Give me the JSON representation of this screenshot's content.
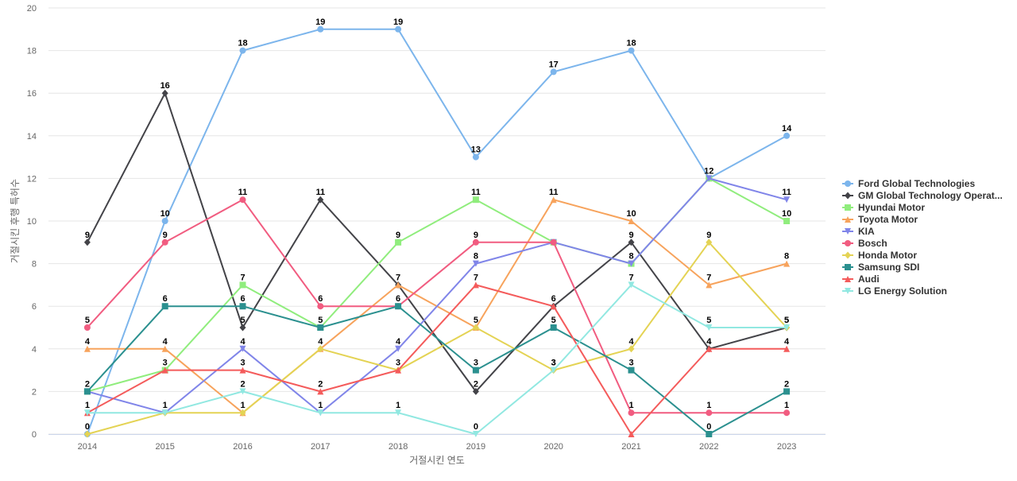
{
  "chart_data": {
    "type": "line",
    "title": "",
    "xlabel": "거절시킨 연도",
    "ylabel": "거절시킨 후행 특허수",
    "ylim": [
      0,
      20
    ],
    "yticks": [
      0,
      2,
      4,
      6,
      8,
      10,
      12,
      14,
      16,
      18,
      20
    ],
    "grid": true,
    "legend_position": "right",
    "categories": [
      "2014",
      "2015",
      "2016",
      "2017",
      "2018",
      "2019",
      "2020",
      "2021",
      "2022",
      "2023"
    ],
    "series": [
      {
        "name": "Ford Global Technologies",
        "color": "#7cb5ec",
        "marker": "circle",
        "values": [
          0,
          10,
          18,
          19,
          19,
          13,
          17,
          18,
          12,
          14
        ]
      },
      {
        "name": "GM Global Technology Operat...",
        "color": "#434348",
        "marker": "diamond",
        "values": [
          9,
          16,
          5,
          11,
          7,
          2,
          6,
          9,
          4,
          5
        ]
      },
      {
        "name": "Hyundai Motor",
        "color": "#90ed7d",
        "marker": "square",
        "values": [
          2,
          3,
          7,
          5,
          9,
          11,
          9,
          8,
          12,
          10
        ]
      },
      {
        "name": "Toyota Motor",
        "color": "#f7a35c",
        "marker": "triangle",
        "values": [
          4,
          4,
          1,
          4,
          7,
          5,
          11,
          10,
          7,
          8
        ]
      },
      {
        "name": "KIA",
        "color": "#8085e9",
        "marker": "triangle-down",
        "values": [
          2,
          1,
          4,
          1,
          4,
          8,
          9,
          8,
          12,
          11
        ]
      },
      {
        "name": "Bosch",
        "color": "#f15c80",
        "marker": "circle",
        "values": [
          5,
          9,
          11,
          6,
          6,
          9,
          9,
          1,
          1,
          1
        ]
      },
      {
        "name": "Honda Motor",
        "color": "#e4d354",
        "marker": "diamond",
        "values": [
          0,
          1,
          1,
          4,
          3,
          5,
          3,
          4,
          9,
          5
        ]
      },
      {
        "name": "Samsung SDI",
        "color": "#2b908f",
        "marker": "square",
        "values": [
          2,
          6,
          6,
          5,
          6,
          3,
          5,
          3,
          0,
          2
        ]
      },
      {
        "name": "Audi",
        "color": "#f45b5b",
        "marker": "triangle",
        "values": [
          1,
          3,
          3,
          2,
          3,
          7,
          6,
          0,
          4,
          4
        ]
      },
      {
        "name": "LG Energy Solution",
        "color": "#91e8e1",
        "marker": "triangle-down",
        "values": [
          1,
          1,
          2,
          1,
          1,
          0,
          3,
          7,
          5,
          5
        ]
      }
    ],
    "data_labels": [
      {
        "series": 0,
        "index": 0,
        "text": "0"
      },
      {
        "series": 0,
        "index": 1,
        "text": "10"
      },
      {
        "series": 0,
        "index": 2,
        "text": "18"
      },
      {
        "series": 0,
        "index": 3,
        "text": "19"
      },
      {
        "series": 0,
        "index": 4,
        "text": "19"
      },
      {
        "series": 0,
        "index": 5,
        "text": "13"
      },
      {
        "series": 0,
        "index": 6,
        "text": "17"
      },
      {
        "series": 0,
        "index": 7,
        "text": "18"
      },
      {
        "series": 0,
        "index": 8,
        "text": "12"
      },
      {
        "series": 0,
        "index": 9,
        "text": "14"
      },
      {
        "series": 1,
        "index": 0,
        "text": "9"
      },
      {
        "series": 1,
        "index": 1,
        "text": "16"
      },
      {
        "series": 1,
        "index": 2,
        "text": "5"
      },
      {
        "series": 1,
        "index": 3,
        "text": "11"
      },
      {
        "series": 1,
        "index": 5,
        "text": "2"
      },
      {
        "series": 1,
        "index": 7,
        "text": "9"
      },
      {
        "series": 1,
        "index": 8,
        "text": "4"
      },
      {
        "series": 2,
        "index": 0,
        "text": "2"
      },
      {
        "series": 2,
        "index": 2,
        "text": "7"
      },
      {
        "series": 2,
        "index": 4,
        "text": "9"
      },
      {
        "series": 2,
        "index": 5,
        "text": "11"
      },
      {
        "series": 2,
        "index": 9,
        "text": "10"
      },
      {
        "series": 3,
        "index": 0,
        "text": "4"
      },
      {
        "series": 3,
        "index": 1,
        "text": "4"
      },
      {
        "series": 3,
        "index": 3,
        "text": "4"
      },
      {
        "series": 3,
        "index": 4,
        "text": "7"
      },
      {
        "series": 3,
        "index": 5,
        "text": "5"
      },
      {
        "series": 3,
        "index": 6,
        "text": "11"
      },
      {
        "series": 3,
        "index": 7,
        "text": "10"
      },
      {
        "series": 3,
        "index": 8,
        "text": "7"
      },
      {
        "series": 3,
        "index": 9,
        "text": "8"
      },
      {
        "series": 4,
        "index": 2,
        "text": "4"
      },
      {
        "series": 4,
        "index": 3,
        "text": "1"
      },
      {
        "series": 4,
        "index": 4,
        "text": "4"
      },
      {
        "series": 4,
        "index": 5,
        "text": "8"
      },
      {
        "series": 4,
        "index": 7,
        "text": "8"
      },
      {
        "series": 4,
        "index": 9,
        "text": "11"
      },
      {
        "series": 5,
        "index": 0,
        "text": "5"
      },
      {
        "series": 5,
        "index": 1,
        "text": "9"
      },
      {
        "series": 5,
        "index": 2,
        "text": "11"
      },
      {
        "series": 5,
        "index": 3,
        "text": "6"
      },
      {
        "series": 5,
        "index": 5,
        "text": "9"
      },
      {
        "series": 5,
        "index": 7,
        "text": "1"
      },
      {
        "series": 5,
        "index": 8,
        "text": "1"
      },
      {
        "series": 5,
        "index": 9,
        "text": "1"
      },
      {
        "series": 6,
        "index": 1,
        "text": "1"
      },
      {
        "series": 6,
        "index": 2,
        "text": "1"
      },
      {
        "series": 6,
        "index": 4,
        "text": "3"
      },
      {
        "series": 6,
        "index": 6,
        "text": "3"
      },
      {
        "series": 6,
        "index": 7,
        "text": "4"
      },
      {
        "series": 6,
        "index": 8,
        "text": "9"
      },
      {
        "series": 6,
        "index": 9,
        "text": "5"
      },
      {
        "series": 7,
        "index": 1,
        "text": "6"
      },
      {
        "series": 7,
        "index": 2,
        "text": "6"
      },
      {
        "series": 7,
        "index": 3,
        "text": "5"
      },
      {
        "series": 7,
        "index": 4,
        "text": "6"
      },
      {
        "series": 7,
        "index": 5,
        "text": "3"
      },
      {
        "series": 7,
        "index": 6,
        "text": "5"
      },
      {
        "series": 7,
        "index": 7,
        "text": "3"
      },
      {
        "series": 7,
        "index": 8,
        "text": "0"
      },
      {
        "series": 7,
        "index": 9,
        "text": "2"
      },
      {
        "series": 8,
        "index": 0,
        "text": "1"
      },
      {
        "series": 8,
        "index": 1,
        "text": "3"
      },
      {
        "series": 8,
        "index": 2,
        "text": "3"
      },
      {
        "series": 8,
        "index": 3,
        "text": "2"
      },
      {
        "series": 8,
        "index": 5,
        "text": "7"
      },
      {
        "series": 8,
        "index": 6,
        "text": "6"
      },
      {
        "series": 8,
        "index": 8,
        "text": "4"
      },
      {
        "series": 8,
        "index": 9,
        "text": "4"
      },
      {
        "series": 9,
        "index": 2,
        "text": "2"
      },
      {
        "series": 9,
        "index": 4,
        "text": "1"
      },
      {
        "series": 9,
        "index": 5,
        "text": "0"
      },
      {
        "series": 9,
        "index": 6,
        "text": "3"
      },
      {
        "series": 9,
        "index": 7,
        "text": "7"
      },
      {
        "series": 9,
        "index": 8,
        "text": "5"
      },
      {
        "series": 9,
        "index": 9,
        "text": "5"
      }
    ]
  }
}
